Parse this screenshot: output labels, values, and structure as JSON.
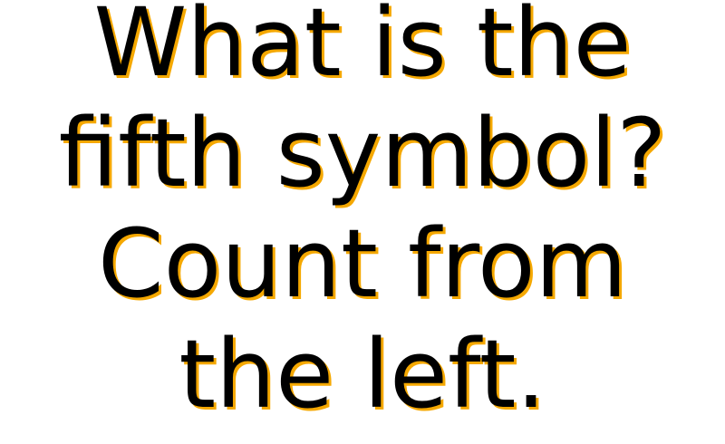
{
  "prompt": {
    "lines": [
      "What is the",
      "fifth symbol?",
      "Count from",
      "the left."
    ]
  },
  "colors": {
    "text": "#000000",
    "shadow": "#f5a800",
    "background": "#ffffff"
  }
}
